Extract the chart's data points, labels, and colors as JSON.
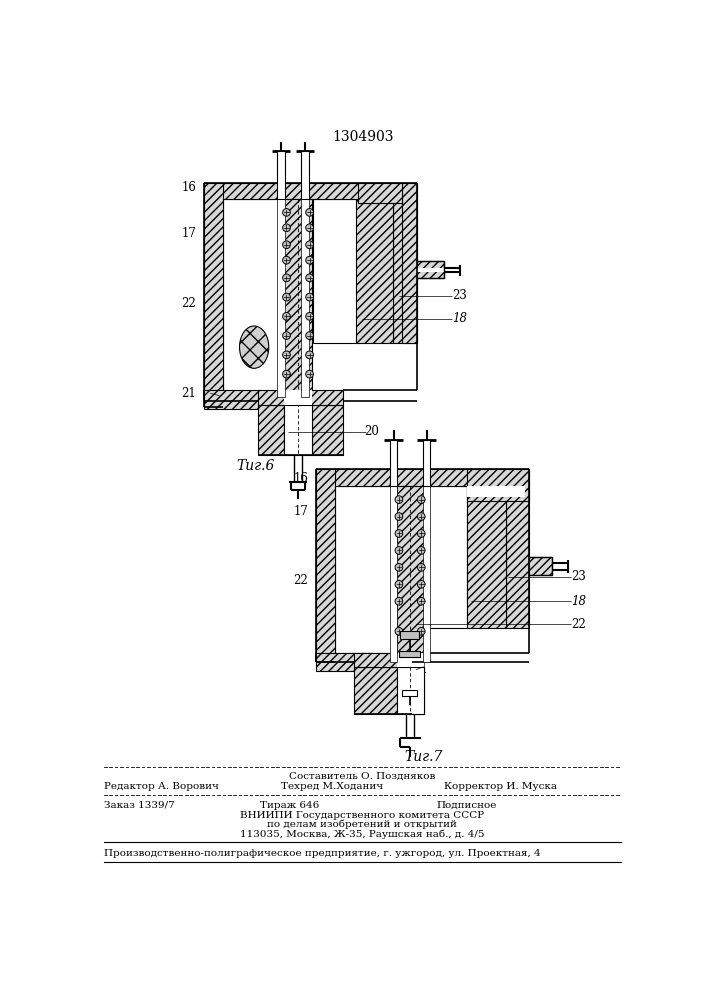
{
  "title": "1304903",
  "fig6_caption": "Τиг.6",
  "fig7_caption": "Τиг.7",
  "footer_line1": "Составитель О. Поздняков",
  "footer_line2_left": "Редактор А. Ворович",
  "footer_line2_mid": "Техред М.Ходанич",
  "footer_line2_right": "Корректор И. Муска",
  "footer_line3_left": "Заказ 1339/7",
  "footer_line3_mid": "Тираж 646",
  "footer_line3_right": "Подписное",
  "footer_line4": "ВНИИПИ Государственного комитета СССР",
  "footer_line5": "по делам изобретений и открытий",
  "footer_line6": "113035, Москва, Ж-35, Раушская наб., д. 4/5",
  "footer_line7": "Производственно-полиграфическое предприятие, г. ужгород, ул. Проектная, 4",
  "bg_color": "#ffffff",
  "line_color": "#000000"
}
